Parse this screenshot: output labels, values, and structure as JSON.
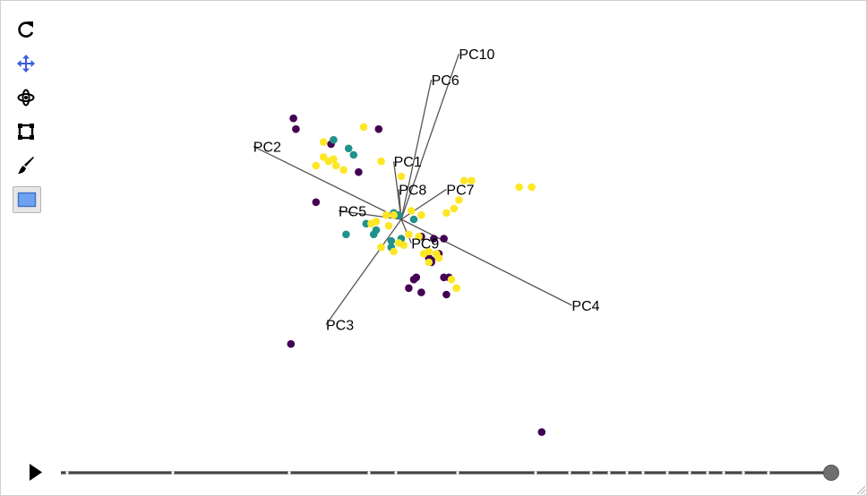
{
  "toolbar": {
    "tools": [
      {
        "name": "reset-icon",
        "label": "Reset"
      },
      {
        "name": "pan-icon",
        "label": "Pan",
        "active": true,
        "color": "#3b5bdb"
      },
      {
        "name": "orbit-icon",
        "label": "Orbit"
      },
      {
        "name": "zoom-box-icon",
        "label": "Zoom box"
      },
      {
        "name": "brush-icon",
        "label": "Brush"
      },
      {
        "name": "selection-box-icon",
        "label": "Select",
        "fill": "#6ea2f0"
      }
    ]
  },
  "player": {
    "play_icon": "play-icon",
    "ticks": 28,
    "progress": 1.0
  },
  "colors": {
    "class0": "#440154",
    "class1": "#21918c",
    "class2": "#fde725",
    "axis_line": "#555555"
  },
  "chart_data": {
    "type": "scatter",
    "title": "",
    "xlabel": "",
    "ylabel": "",
    "grid": false,
    "legend": "none",
    "xlim": [
      -1.6,
      1.6
    ],
    "ylim": [
      -1.0,
      1.0
    ],
    "axes": [
      {
        "label": "PC1",
        "x": -0.03,
        "y": 0.27
      },
      {
        "label": "PC2",
        "x": -0.59,
        "y": 0.34
      },
      {
        "label": "PC3",
        "x": -0.3,
        "y": -0.49
      },
      {
        "label": "PC4",
        "x": 0.68,
        "y": -0.4
      },
      {
        "label": "PC5",
        "x": -0.25,
        "y": 0.04
      },
      {
        "label": "PC6",
        "x": 0.12,
        "y": 0.65
      },
      {
        "label": "PC7",
        "x": 0.18,
        "y": 0.14
      },
      {
        "label": "PC8",
        "x": -0.01,
        "y": 0.14
      },
      {
        "label": "PC9",
        "x": 0.04,
        "y": -0.11
      },
      {
        "label": "PC10",
        "x": 0.23,
        "y": 0.77
      }
    ],
    "series": [
      {
        "class": 0,
        "points": [
          [
            -0.43,
            0.47
          ],
          [
            -0.42,
            0.42
          ],
          [
            -0.28,
            0.35
          ],
          [
            -0.09,
            0.42
          ],
          [
            -0.17,
            0.22
          ],
          [
            -0.34,
            0.08
          ],
          [
            0.08,
            -0.08
          ],
          [
            0.17,
            -0.09
          ],
          [
            0.15,
            -0.16
          ],
          [
            0.12,
            -0.19
          ],
          [
            0.12,
            -0.2
          ],
          [
            0.06,
            -0.27
          ],
          [
            0.05,
            -0.28
          ],
          [
            0.03,
            -0.32
          ],
          [
            0.08,
            -0.34
          ],
          [
            0.17,
            -0.27
          ],
          [
            0.19,
            -0.27
          ],
          [
            0.18,
            -0.35
          ],
          [
            -0.44,
            -0.58
          ],
          [
            0.56,
            -0.99
          ],
          [
            0.13,
            -0.09
          ],
          [
            0.11,
            -0.18
          ]
        ]
      },
      {
        "class": 1,
        "points": [
          [
            -0.27,
            0.37
          ],
          [
            -0.21,
            0.33
          ],
          [
            -0.19,
            0.3
          ],
          [
            -0.03,
            0.03
          ],
          [
            -0.01,
            0.02
          ],
          [
            0.05,
            0.0
          ],
          [
            -0.14,
            -0.02
          ],
          [
            -0.1,
            -0.05
          ],
          [
            -0.11,
            -0.07
          ],
          [
            -0.22,
            -0.07
          ],
          [
            -0.04,
            -0.1
          ],
          [
            -0.04,
            -0.13
          ],
          [
            0.0,
            -0.09
          ]
        ]
      },
      {
        "class": 2,
        "points": [
          [
            -0.31,
            0.36
          ],
          [
            -0.15,
            0.43
          ],
          [
            -0.31,
            0.29
          ],
          [
            -0.27,
            0.28
          ],
          [
            -0.26,
            0.25
          ],
          [
            -0.34,
            0.25
          ],
          [
            -0.29,
            0.27
          ],
          [
            -0.23,
            0.23
          ],
          [
            -0.08,
            0.27
          ],
          [
            0.0,
            0.2
          ],
          [
            0.25,
            0.18
          ],
          [
            0.28,
            0.18
          ],
          [
            0.47,
            0.15
          ],
          [
            0.52,
            0.15
          ],
          [
            0.23,
            0.09
          ],
          [
            0.21,
            0.05
          ],
          [
            0.18,
            0.03
          ],
          [
            0.08,
            0.02
          ],
          [
            0.04,
            0.04
          ],
          [
            -0.03,
            0.02
          ],
          [
            -0.06,
            0.02
          ],
          [
            -0.05,
            -0.03
          ],
          [
            -0.1,
            -0.01
          ],
          [
            -0.12,
            -0.02
          ],
          [
            0.03,
            -0.07
          ],
          [
            0.07,
            -0.08
          ],
          [
            -0.01,
            -0.11
          ],
          [
            0.01,
            -0.12
          ],
          [
            -0.08,
            -0.13
          ],
          [
            -0.03,
            -0.15
          ],
          [
            0.14,
            -0.16
          ],
          [
            0.15,
            -0.18
          ],
          [
            0.11,
            -0.15
          ],
          [
            0.09,
            -0.16
          ],
          [
            0.11,
            -0.2
          ],
          [
            0.2,
            -0.28
          ],
          [
            0.22,
            -0.32
          ]
        ]
      }
    ]
  }
}
